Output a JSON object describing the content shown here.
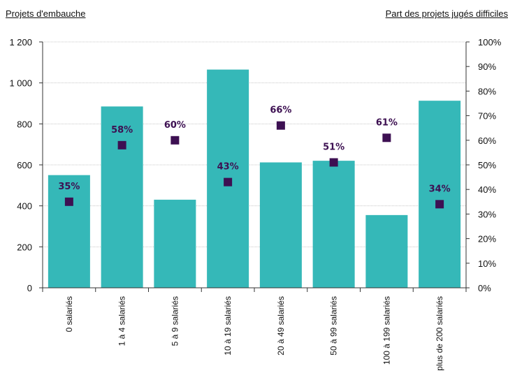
{
  "chart_data": {
    "type": "bar",
    "left_axis_title": "Projets d'embauche",
    "right_axis_title": "Part des projets jugés difficiles",
    "categories": [
      "0 salariés",
      "1 à 4 salariés",
      "5 à 9 salariés",
      "10 à 19 salariés",
      "20 à 49 salariés",
      "50 à 99 salariés",
      "100 à 199 salariés",
      "plus de 200 salariés"
    ],
    "bar_values": [
      550,
      885,
      430,
      1065,
      612,
      620,
      355,
      913
    ],
    "marker_values": [
      35,
      58,
      60,
      43,
      66,
      51,
      61,
      34
    ],
    "marker_labels": [
      "35%",
      "58%",
      "60%",
      "43%",
      "66%",
      "51%",
      "61%",
      "34%"
    ],
    "left_axis": {
      "min": 0,
      "max": 1200,
      "ticks": [
        0,
        200,
        400,
        600,
        800,
        1000,
        1200
      ],
      "tick_labels": [
        "0",
        "200",
        "400",
        "600",
        "800",
        "1 000",
        "1 200"
      ]
    },
    "right_axis": {
      "min": 0,
      "max": 100,
      "ticks": [
        0,
        10,
        20,
        30,
        40,
        50,
        60,
        70,
        80,
        90,
        100
      ],
      "tick_labels": [
        "0%",
        "10%",
        "20%",
        "30%",
        "40%",
        "50%",
        "60%",
        "70%",
        "80%",
        "90%",
        "100%"
      ]
    },
    "grid": true,
    "colors": {
      "bar": "#35b8b8",
      "marker": "#3d1052",
      "grid": "#c8c8c8",
      "axis": "#333333"
    }
  }
}
